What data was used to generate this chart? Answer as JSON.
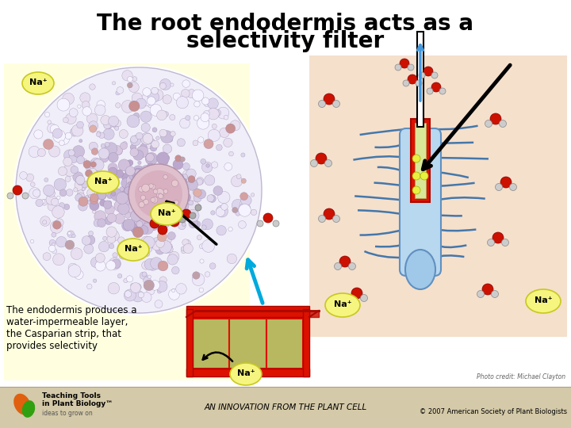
{
  "title_line1": "The root endodermis acts as a",
  "title_line2": "selectivity filter",
  "title_fontsize": 20,
  "title_fontweight": "bold",
  "bg_color": "#ffffff",
  "footer_bg": "#d4c9a8",
  "footer_text_center": "AN INNOVATION FROM THE PLANT CELL",
  "footer_text_right": "© 2007 American Society of Plant Biologists",
  "left_panel_bg": "#ffffe0",
  "right_panel_bg": "#f5e0cc",
  "na_label": "Na⁺",
  "casparian_text": "The endodermis produces a\nwater-impermeable layer,\nthe Casparian strip, that\nprovides selectivity",
  "photo_credit": "Photo credit: Michael Clayton",
  "root_circle_color": "#e8e4f0",
  "root_circle_edge": "#a090b0"
}
